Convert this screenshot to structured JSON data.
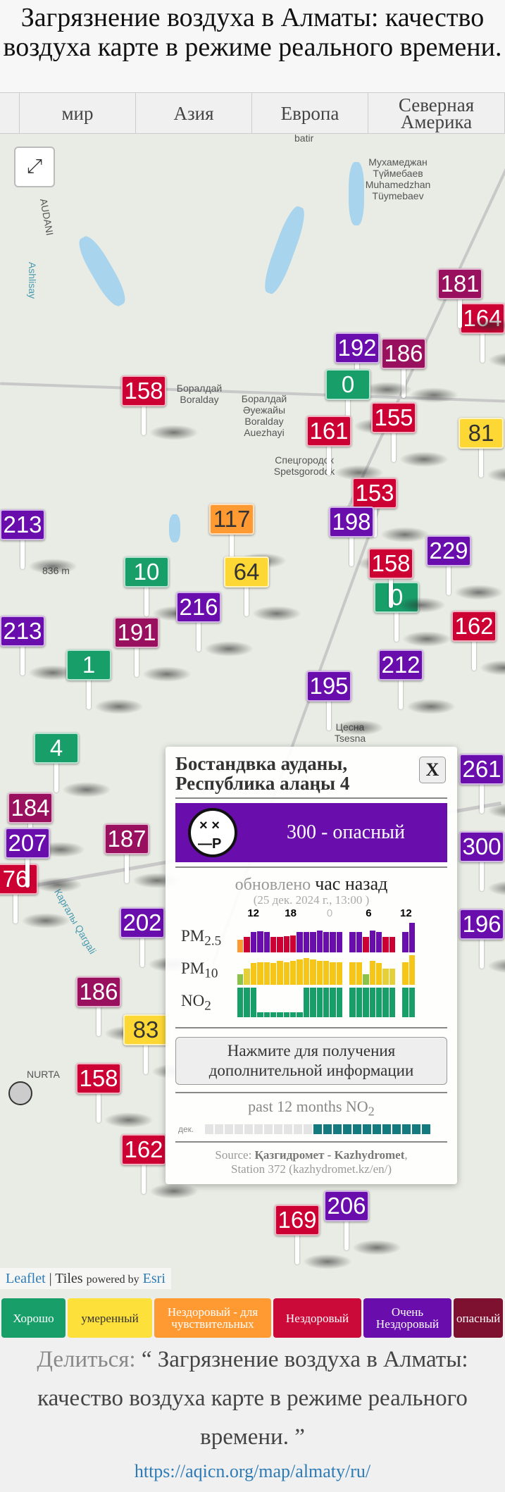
{
  "page_title": "Загрязнение воздуха в Алматы: качество воздуха карте в режиме реального времени.",
  "tabs": [
    "мир",
    "Азия",
    "Европа",
    "Северная Америка"
  ],
  "map": {
    "places": [
      "batir",
      "Мухамеджан Түймебаев Muhamedzhan Tüymebaev",
      "Боралдай Boralday",
      "Боралдай Әуежайы Boralday Auezhayi",
      "Спецгородок Spetsgorodok",
      "836 m",
      "Цесна Tsesna",
      "Карғалы Qargali",
      "NURTA",
      "Ashlisay",
      "AUDANI"
    ],
    "markers": [
      {
        "value": "164",
        "level": "unhealthy"
      },
      {
        "value": "181",
        "level": "very-unhealthy-low"
      },
      {
        "value": "186",
        "level": "very-unhealthy-low"
      },
      {
        "value": "192",
        "level": "very-unhealthy"
      },
      {
        "value": "0",
        "level": "good"
      },
      {
        "value": "158",
        "level": "unhealthy"
      },
      {
        "value": "161",
        "level": "unhealthy"
      },
      {
        "value": "155",
        "level": "unhealthy"
      },
      {
        "value": "81",
        "level": "moderate"
      },
      {
        "value": "153",
        "level": "unhealthy"
      },
      {
        "value": "213",
        "level": "very-unhealthy"
      },
      {
        "value": "117",
        "level": "usg"
      },
      {
        "value": "198",
        "level": "very-unhealthy"
      },
      {
        "value": "229",
        "level": "very-unhealthy"
      },
      {
        "value": "0",
        "level": "good"
      },
      {
        "value": "158",
        "level": "unhealthy"
      },
      {
        "value": "64",
        "level": "moderate"
      },
      {
        "value": "10",
        "level": "good"
      },
      {
        "value": "216",
        "level": "very-unhealthy"
      },
      {
        "value": "213",
        "level": "very-unhealthy"
      },
      {
        "value": "191",
        "level": "very-unhealthy-low"
      },
      {
        "value": "162",
        "level": "unhealthy"
      },
      {
        "value": "1",
        "level": "good"
      },
      {
        "value": "212",
        "level": "very-unhealthy"
      },
      {
        "value": "195",
        "level": "very-unhealthy"
      },
      {
        "value": "4",
        "level": "good"
      },
      {
        "value": "76",
        "level": "unhealthy"
      },
      {
        "value": "184",
        "level": "very-unhealthy-low"
      },
      {
        "value": "207",
        "level": "very-unhealthy"
      },
      {
        "value": "187",
        "level": "very-unhealthy-low"
      },
      {
        "value": "202",
        "level": "very-unhealthy"
      },
      {
        "value": "186",
        "level": "very-unhealthy-low"
      },
      {
        "value": "83",
        "level": "moderate"
      },
      {
        "value": "158",
        "level": "unhealthy"
      },
      {
        "value": "162",
        "level": "unhealthy"
      },
      {
        "value": "196",
        "level": "very-unhealthy"
      },
      {
        "value": "261",
        "level": "very-unhealthy"
      },
      {
        "value": "300",
        "level": "very-unhealthy"
      },
      {
        "value": "169",
        "level": "unhealthy"
      },
      {
        "value": "206",
        "level": "very-unhealthy"
      }
    ],
    "fullscreen_icon": "expand-arrows-icon"
  },
  "colors": {
    "good": "#179e69",
    "moderate": "#fdd835",
    "usg": "#ff9a33",
    "unhealthy": "#cc0033",
    "very-unhealthy": "#6a0dad",
    "very-unhealthy-low": "#99105f",
    "hazardous": "#7e0023",
    "no2_month": "#137a7f"
  },
  "popup": {
    "title": "Бостандвка ауданы, Республика алаңы 4",
    "close_label": "X",
    "aqi_text": "300 - опасный",
    "face_icon": "dead-face-icon",
    "updated_label": "обновлено",
    "updated_value": "час назад",
    "date": "(25 дек. 2024 г., 13:00 )",
    "hour_ticks": [
      "12",
      "18",
      "0",
      "6",
      "12"
    ],
    "pm25": {
      "label": "PM",
      "sub": "2.5",
      "values": [
        130,
        160,
        210,
        215,
        210,
        160,
        160,
        165,
        170,
        205,
        210,
        210,
        225,
        210,
        205,
        205,
        null,
        205,
        210,
        160,
        220,
        210,
        160,
        160,
        null,
        205,
        300
      ]
    },
    "pm10": {
      "label": "PM",
      "sub": "10",
      "values": [
        40,
        60,
        80,
        85,
        85,
        80,
        90,
        85,
        90,
        95,
        100,
        95,
        90,
        90,
        85,
        85,
        null,
        85,
        85,
        40,
        90,
        80,
        60,
        60,
        null,
        85,
        110
      ]
    },
    "no2": {
      "label": "NO",
      "sub": "2",
      "values": [
        30,
        30,
        30,
        5,
        5,
        5,
        5,
        5,
        5,
        5,
        30,
        30,
        30,
        30,
        30,
        30,
        null,
        30,
        30,
        30,
        30,
        30,
        30,
        30,
        null,
        30,
        30
      ]
    },
    "more_button": "Нажмите для получения дополнительной информации",
    "past_label": "past 12 months NO",
    "past_sub": "2",
    "past_month_label": "дек.",
    "past_months_present": [
      0,
      0,
      0,
      0,
      0,
      0,
      0,
      0,
      0,
      0,
      0,
      1,
      1,
      1,
      1,
      1,
      1,
      1,
      1,
      1,
      1,
      1,
      1
    ],
    "source_prefix": "Source:",
    "source_name": "Қазгидромет - Kazhydromet",
    "source_station": "Station 372 (kazhydromet.kz/en/)"
  },
  "attribution": {
    "leaflet": "Leaflet",
    "sep": "|",
    "tiles": "Tiles",
    "powered": "powered by",
    "esri": "Esri"
  },
  "legend": [
    {
      "label": "Хорошо",
      "color": "#179e69",
      "text": "#fff"
    },
    {
      "label": "умеренный",
      "color": "#fde03a",
      "text": "#333"
    },
    {
      "label": "Нездоровый - для чувствительных",
      "color": "#ff9a33",
      "text": "#fff"
    },
    {
      "label": "Нездоровый",
      "color": "#cc0a3a",
      "text": "#fff"
    },
    {
      "label": "Очень Нездоровый",
      "color": "#6a0dad",
      "text": "#fff"
    },
    {
      "label": "опасный",
      "color": "#7e1030",
      "text": "#fff"
    }
  ],
  "share": {
    "label": "Делиться:",
    "text": "“ Загрязнение воздуха в Алматы: качество воздуха карте в режиме реального времени. ”",
    "url": "https://aqicn.org/map/almaty/ru/"
  }
}
